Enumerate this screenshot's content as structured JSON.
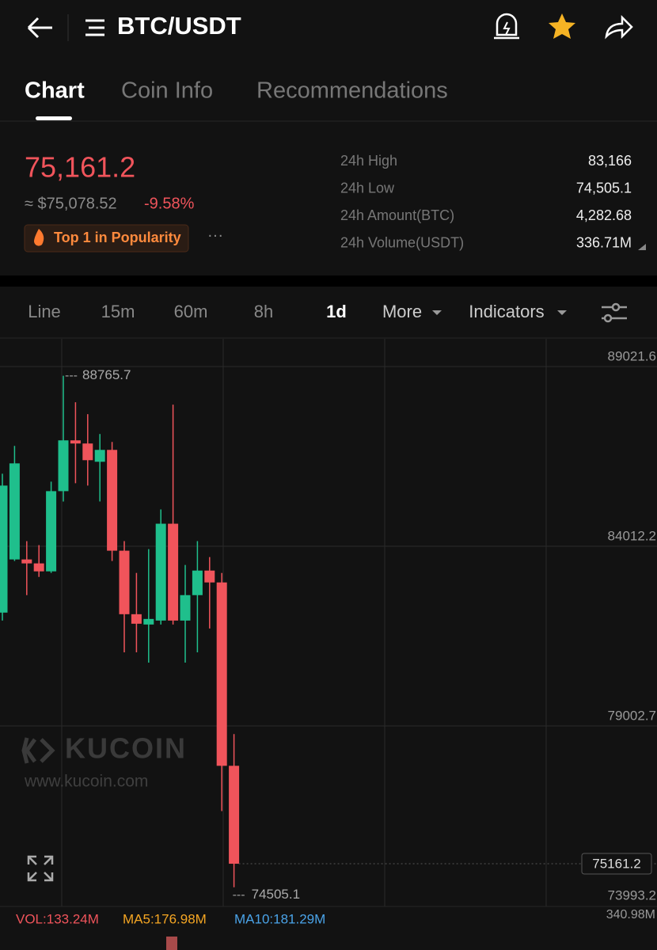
{
  "header": {
    "pair": "BTC/USDT"
  },
  "tabs": [
    "Chart",
    "Coin Info",
    "Recommendations"
  ],
  "price": {
    "last": "75,161.2",
    "usd": "≈ $75,078.52",
    "change": "-9.58%",
    "badge": "Top 1 in Popularity"
  },
  "stats": [
    {
      "label": "24h High",
      "value": "83,166"
    },
    {
      "label": "24h Low",
      "value": "74,505.1"
    },
    {
      "label": "24h Amount(BTC)",
      "value": "4,282.68"
    },
    {
      "label": "24h Volume(USDT)",
      "value": "336.71M"
    }
  ],
  "toolbar": [
    "Line",
    "15m",
    "60m",
    "8h",
    "1d",
    "More",
    "Indicators"
  ],
  "watermark": {
    "brand": "KUCOIN",
    "url": "www.kucoin.com"
  },
  "indicators": {
    "vol": "VOL:133.24M",
    "ma5": "MA5:176.98M",
    "ma10": "MA10:181.29M",
    "axis": "340.98M"
  },
  "chart_data": {
    "type": "candlestick",
    "open": [
      82162,
      83644,
      83644,
      83534,
      83312,
      85548,
      86964,
      86876,
      86367,
      86698,
      83888,
      82117,
      81830,
      81940,
      84640,
      81940,
      82649,
      83334,
      83003,
      77891
    ],
    "high": [
      86035,
      86809,
      84154,
      84043,
      85813,
      88765.7,
      88026,
      87694,
      87141,
      86920,
      84154,
      83268,
      83932,
      85039,
      87960,
      83490,
      84154,
      83710,
      83268,
      78776
    ],
    "low": [
      81940,
      83600,
      82649,
      83157,
      83268,
      85260,
      85769,
      85703,
      85260,
      83600,
      81055,
      81055,
      80768,
      81830,
      81830,
      80768,
      81055,
      81719,
      76629,
      74505.1
    ],
    "close": [
      85703,
      86322,
      83534,
      83312,
      85548,
      86964,
      86876,
      86411,
      86698,
      83888,
      82117,
      81852,
      81985,
      84640,
      81940,
      82649,
      83334,
      83003,
      77891,
      75161.2
    ],
    "up_color": "#1fbf8c",
    "down_color": "#f0545b",
    "ylim": [
      73970,
      89794
    ],
    "yticks": [
      89021.6,
      84012.2,
      79002.7,
      73993.2
    ],
    "grid": true
  }
}
